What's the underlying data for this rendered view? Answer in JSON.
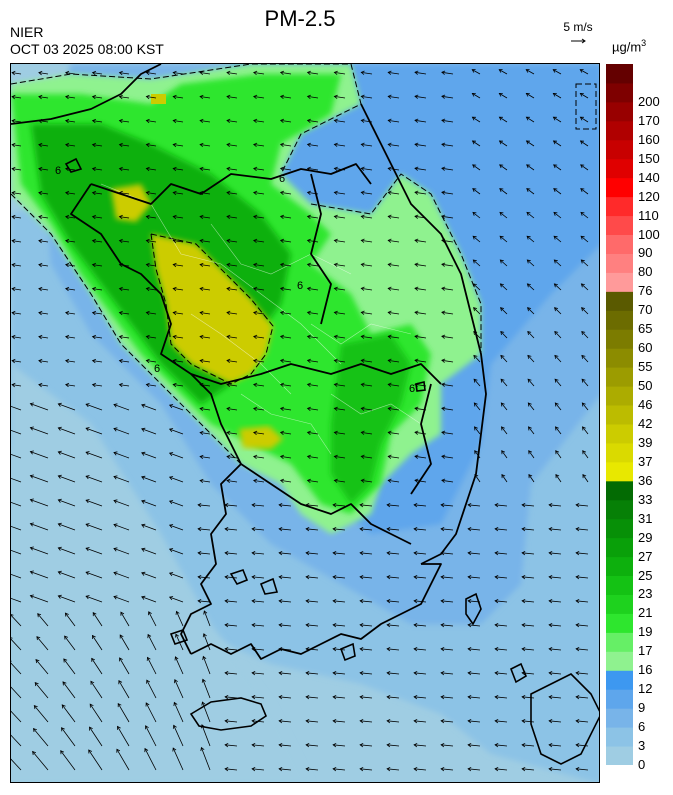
{
  "header": {
    "title": "PM-2.5",
    "agency": "NIER",
    "timestamp": "OCT 03 2025 08:00 KST"
  },
  "wind_reference": {
    "label": "5 m/s",
    "speed_ms": 5
  },
  "colorbar": {
    "unit": "µg/m",
    "unit_exponent": "3",
    "levels": [
      {
        "value": "0",
        "color": "#9fcde3"
      },
      {
        "value": "3",
        "color": "#8cc3e6"
      },
      {
        "value": "6",
        "color": "#78b4e9"
      },
      {
        "value": "9",
        "color": "#5ea6ec"
      },
      {
        "value": "12",
        "color": "#3d98f0"
      },
      {
        "value": "16",
        "color": "#8ff28f"
      },
      {
        "value": "17",
        "color": "#66ef66"
      },
      {
        "value": "19",
        "color": "#2ee62e"
      },
      {
        "value": "21",
        "color": "#1ed21e"
      },
      {
        "value": "23",
        "color": "#14c214"
      },
      {
        "value": "25",
        "color": "#0db00d"
      },
      {
        "value": "27",
        "color": "#09a009"
      },
      {
        "value": "29",
        "color": "#079007"
      },
      {
        "value": "31",
        "color": "#068006"
      },
      {
        "value": "33",
        "color": "#036b03"
      },
      {
        "value": "36",
        "color": "#e8e800"
      },
      {
        "value": "37",
        "color": "#dada00"
      },
      {
        "value": "39",
        "color": "#cccc00"
      },
      {
        "value": "42",
        "color": "#bcbc00"
      },
      {
        "value": "46",
        "color": "#acac00"
      },
      {
        "value": "50",
        "color": "#9c9c00"
      },
      {
        "value": "55",
        "color": "#8c8c00"
      },
      {
        "value": "60",
        "color": "#7c7c00"
      },
      {
        "value": "65",
        "color": "#6c6c00"
      },
      {
        "value": "70",
        "color": "#5a5a00"
      },
      {
        "value": "76",
        "color": "#ff9a9a"
      },
      {
        "value": "80",
        "color": "#ff8080"
      },
      {
        "value": "90",
        "color": "#ff6a6a"
      },
      {
        "value": "100",
        "color": "#ff4a4a"
      },
      {
        "value": "110",
        "color": "#ff2a2a"
      },
      {
        "value": "120",
        "color": "#ff0000"
      },
      {
        "value": "140",
        "color": "#e00000"
      },
      {
        "value": "150",
        "color": "#c80000"
      },
      {
        "value": "160",
        "color": "#b00000"
      },
      {
        "value": "170",
        "color": "#980000"
      },
      {
        "value": "200",
        "color": "#7e0000"
      },
      {
        "value": "",
        "color": "#640000"
      }
    ]
  },
  "contour_labels": [
    "6",
    "6",
    "6",
    "6",
    "6"
  ]
}
